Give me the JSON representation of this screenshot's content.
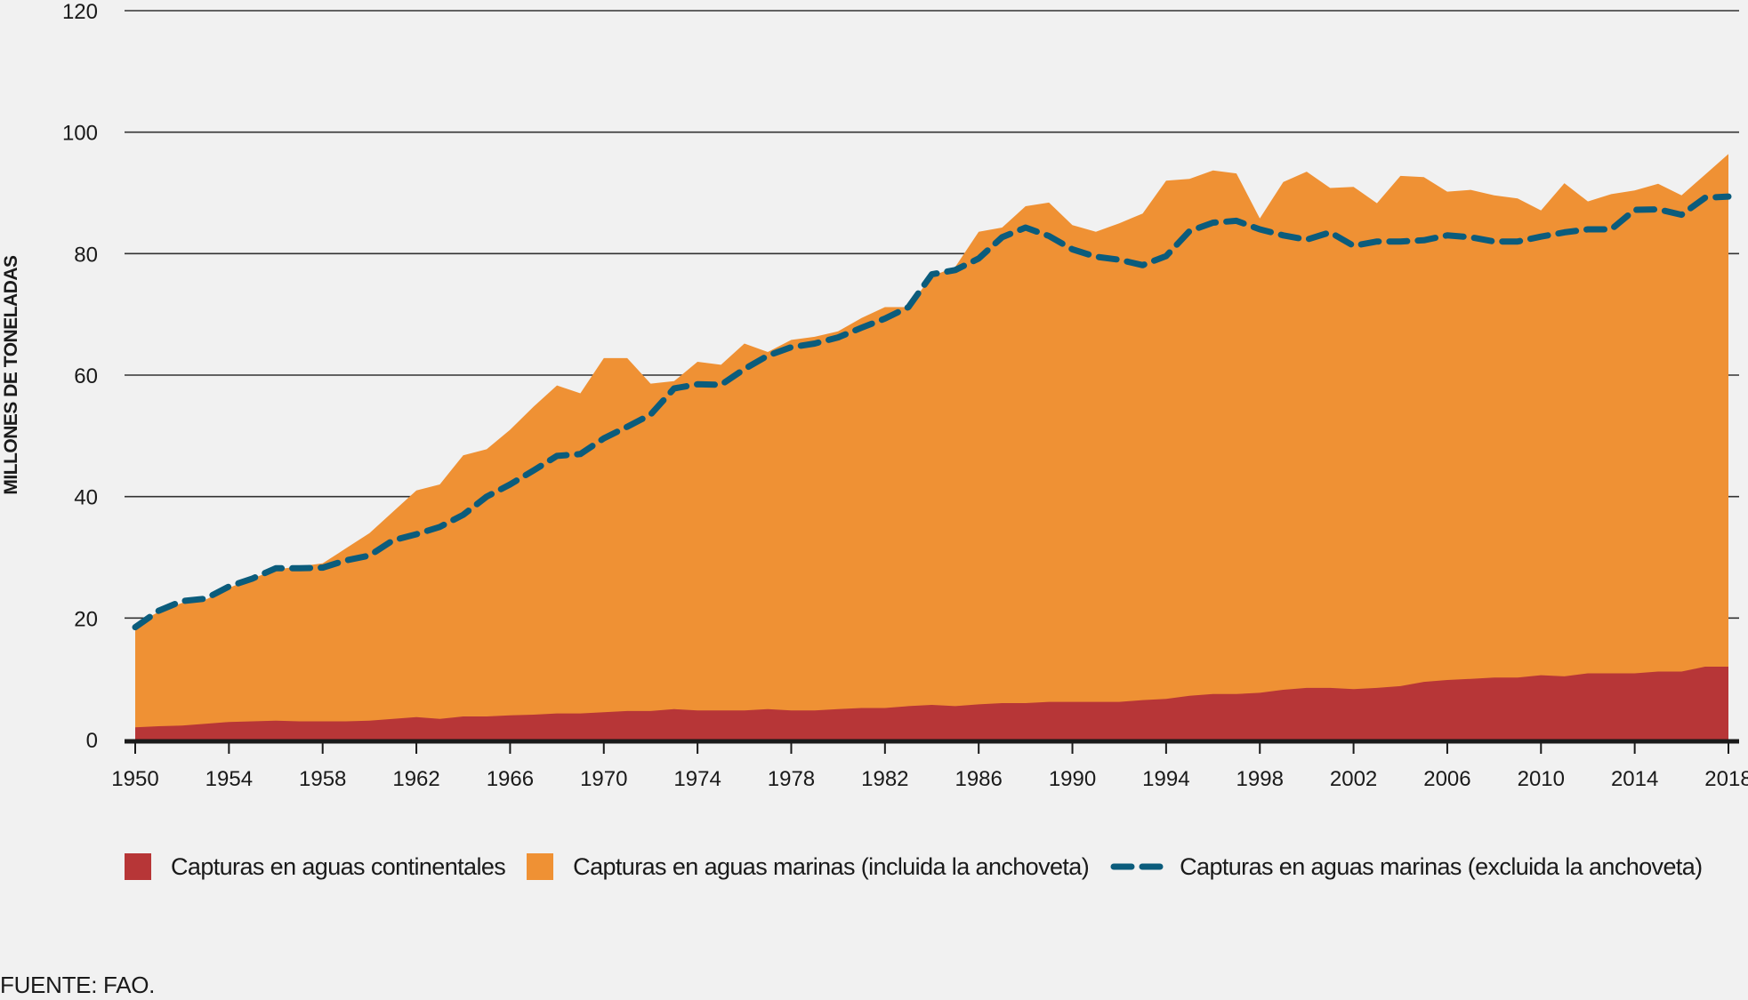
{
  "chart_data": {
    "type": "area",
    "title": "",
    "xlabel": "",
    "ylabel": "MILLONES DE TONELADAS",
    "ylim": [
      0,
      120
    ],
    "yticks": [
      "0",
      "20",
      "40",
      "60",
      "80",
      "100",
      "120"
    ],
    "xlim": [
      1950,
      2018
    ],
    "xticks": [
      "1950",
      "1954",
      "1958",
      "1962",
      "1966",
      "1970",
      "1974",
      "1978",
      "1982",
      "1986",
      "1990",
      "1994",
      "1998",
      "2002",
      "2006",
      "2010",
      "2014",
      "2018"
    ],
    "grid": true,
    "legend_position": "bottom",
    "colors": {
      "inland": "#b73637",
      "marine_incl": "#ef9134",
      "marine_excl": "#0b5c7c",
      "grid": "#333333"
    },
    "x": [
      1950,
      1951,
      1952,
      1953,
      1954,
      1955,
      1956,
      1957,
      1958,
      1959,
      1960,
      1961,
      1962,
      1963,
      1964,
      1965,
      1966,
      1967,
      1968,
      1969,
      1970,
      1971,
      1972,
      1973,
      1974,
      1975,
      1976,
      1977,
      1978,
      1979,
      1980,
      1981,
      1982,
      1983,
      1984,
      1985,
      1986,
      1987,
      1988,
      1989,
      1990,
      1991,
      1992,
      1993,
      1994,
      1995,
      1996,
      1997,
      1998,
      1999,
      2000,
      2001,
      2002,
      2003,
      2004,
      2005,
      2006,
      2007,
      2008,
      2009,
      2010,
      2011,
      2012,
      2013,
      2014,
      2015,
      2016,
      2017,
      2018
    ],
    "series": [
      {
        "name": "Capturas en aguas continentales",
        "kind": "area",
        "values": [
          2.0,
          2.2,
          2.3,
          2.6,
          2.9,
          3.0,
          3.1,
          3.0,
          3.0,
          3.0,
          3.1,
          3.4,
          3.7,
          3.4,
          3.8,
          3.8,
          4.0,
          4.1,
          4.3,
          4.3,
          4.5,
          4.7,
          4.7,
          5.0,
          4.8,
          4.8,
          4.8,
          5.0,
          4.8,
          4.8,
          5.0,
          5.2,
          5.2,
          5.5,
          5.7,
          5.5,
          5.8,
          6.0,
          6.0,
          6.2,
          6.2,
          6.2,
          6.2,
          6.5,
          6.7,
          7.2,
          7.5,
          7.5,
          7.7,
          8.2,
          8.5,
          8.5,
          8.3,
          8.5,
          8.8,
          9.5,
          9.8,
          10.0,
          10.2,
          10.2,
          10.6,
          10.4,
          10.9,
          10.9,
          10.9,
          11.2,
          11.2,
          12.0,
          12.0
        ]
      },
      {
        "name": "Capturas en aguas marinas (incluida la anchoveta)",
        "kind": "area-stacked-total",
        "values": [
          19.0,
          21.0,
          22.5,
          23.0,
          25.0,
          26.5,
          28.0,
          28.5,
          29.0,
          31.5,
          34.0,
          37.5,
          41.0,
          42.0,
          46.8,
          47.8,
          51.0,
          54.8,
          58.3,
          57.0,
          62.8,
          62.8,
          58.6,
          59.0,
          62.2,
          61.7,
          65.2,
          63.8,
          65.8,
          66.3,
          67.2,
          69.4,
          71.2,
          71.2,
          76.3,
          77.8,
          83.6,
          84.3,
          87.8,
          88.4,
          84.7,
          83.6,
          85.0,
          86.6,
          92.0,
          92.3,
          93.7,
          93.2,
          85.8,
          91.8,
          93.5,
          90.8,
          91.0,
          88.3,
          92.8,
          92.6,
          90.2,
          90.5,
          89.6,
          89.1,
          87.1,
          91.6,
          88.6,
          89.8,
          90.4,
          91.5,
          89.6,
          93.0,
          96.4
        ]
      },
      {
        "name": "Capturas en aguas marinas (excluida la anchoveta)",
        "kind": "dashed-line",
        "values": [
          18.5,
          21.2,
          22.8,
          23.2,
          25.2,
          26.5,
          28.2,
          28.2,
          28.3,
          29.5,
          30.3,
          32.8,
          33.8,
          35.0,
          37.0,
          40.0,
          42.0,
          44.3,
          46.7,
          47.0,
          49.6,
          51.5,
          53.5,
          57.8,
          58.5,
          58.4,
          61.0,
          63.2,
          64.6,
          65.2,
          66.2,
          67.8,
          69.3,
          71.2,
          76.6,
          77.3,
          79.2,
          82.7,
          84.3,
          82.9,
          80.7,
          79.5,
          79.0,
          78.1,
          79.6,
          83.7,
          85.1,
          85.4,
          84.0,
          83.0,
          82.3,
          83.5,
          81.3,
          82.0,
          82.0,
          82.2,
          83.0,
          82.7,
          82.0,
          82.0,
          82.8,
          83.5,
          84.0,
          84.0,
          87.2,
          87.3,
          86.4,
          89.2,
          89.4
        ]
      }
    ],
    "source": "FUENTE: FAO."
  }
}
